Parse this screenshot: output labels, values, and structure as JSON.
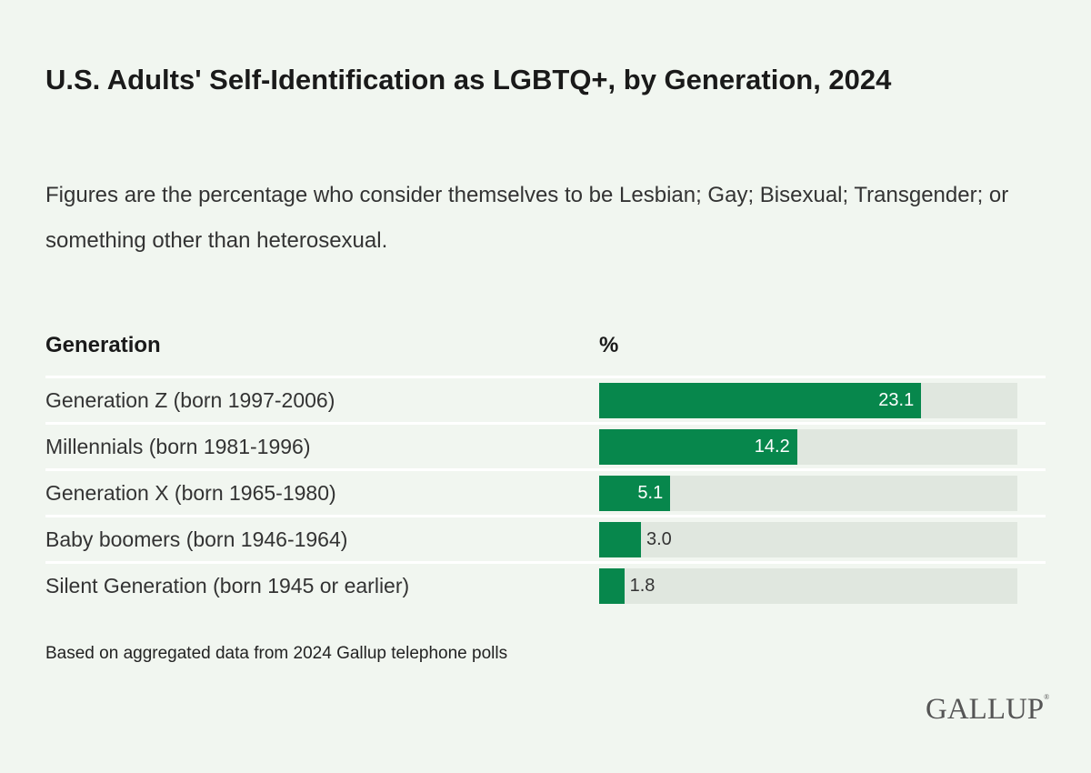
{
  "title": "U.S. Adults' Self-Identification as LGBTQ+, by Generation, 2024",
  "subtitle": "Figures are the percentage who consider themselves to be Lesbian; Gay; Bisexual; Transgender; or something other than heterosexual.",
  "note": "Based on aggregated data from 2024 Gallup telephone polls",
  "logo": "GALLUP",
  "colors": {
    "bar": "#07874c",
    "track": "#e0e7df",
    "background": "#f1f6f0"
  },
  "chart_data": {
    "type": "bar",
    "orientation": "horizontal",
    "column_headers": [
      "Generation",
      "%"
    ],
    "categories": [
      "Generation Z (born 1997-2006)",
      "Millennials (born 1981-1996)",
      "Generation X (born 1965-1980)",
      "Baby boomers (born 1946-1964)",
      "Silent Generation (born 1945 or earlier)"
    ],
    "values": [
      23.1,
      14.2,
      5.1,
      3.0,
      1.8
    ],
    "value_labels": [
      "23.1",
      "14.2",
      "5.1",
      "3.0",
      "1.8"
    ],
    "xlim": [
      0,
      30
    ]
  }
}
